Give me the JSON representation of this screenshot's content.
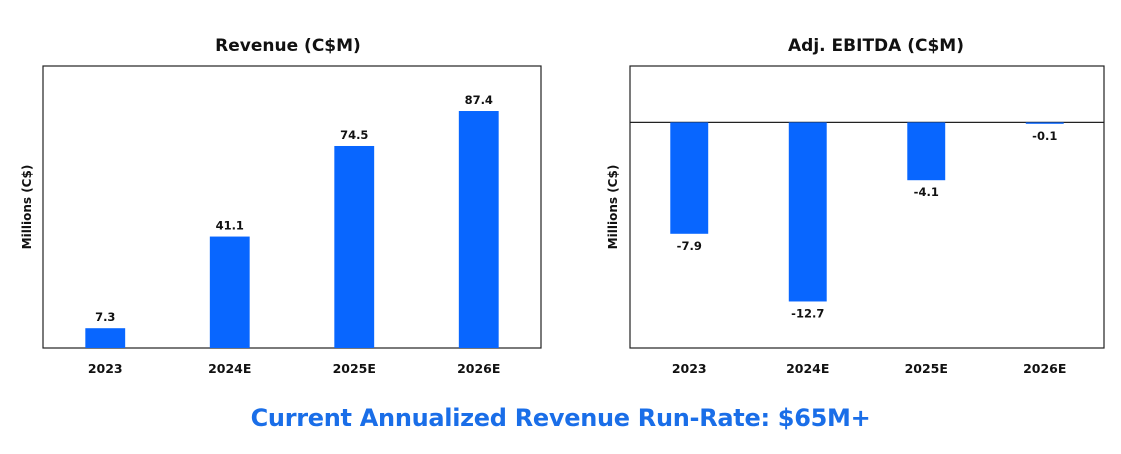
{
  "colors": {
    "bar": "#0866ff",
    "footer_text": "#1a6ee8",
    "frame": "#222222"
  },
  "chart_data": [
    {
      "type": "bar",
      "title": "Revenue (C$M)",
      "ylabel": "Millions (C$)",
      "xlabel": "",
      "categories": [
        "2023",
        "2024E",
        "2025E",
        "2026E"
      ],
      "values": [
        7.3,
        41.1,
        74.5,
        87.4
      ],
      "data_labels": [
        "7.3",
        "41.1",
        "74.5",
        "87.4"
      ],
      "ylim": [
        0,
        104
      ],
      "grid": false,
      "legend": "none"
    },
    {
      "type": "bar",
      "title": "Adj. EBITDA (C$M)",
      "ylabel": "Millions (C$)",
      "xlabel": "",
      "categories": [
        "2023",
        "2024E",
        "2025E",
        "2026E"
      ],
      "values": [
        -7.9,
        -12.7,
        -4.1,
        -0.1
      ],
      "data_labels": [
        "-7.9",
        "-12.7",
        "-4.1",
        "-0.1"
      ],
      "ylim": [
        -16,
        4
      ],
      "grid": false,
      "legend": "none"
    }
  ],
  "footer": {
    "text": "Current Annualized Revenue Run-Rate: $65M+"
  }
}
